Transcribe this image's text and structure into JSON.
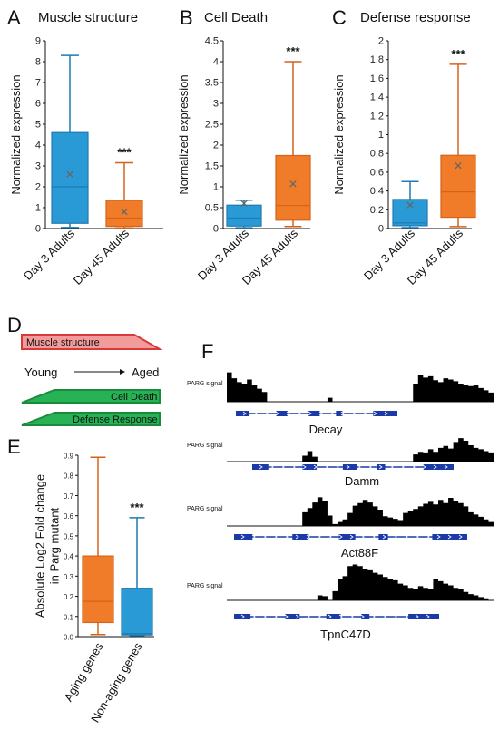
{
  "colors": {
    "blue": "#2a9ad6",
    "blue_dark": "#1f7bb0",
    "orange": "#f07c2a",
    "orange_dark": "#d4621a",
    "mean_mark": "#666666",
    "muscle_fill": "#f29b9b",
    "muscle_stroke": "#d83a3a",
    "green_fill": "#27b255",
    "green_stroke": "#1a8a3c",
    "track_fill": "#000000",
    "gene_blue": "#1a3aa8"
  },
  "chart_data": [
    {
      "panel": "A",
      "type": "box",
      "title": "Muscle structure",
      "ylabel": "Normalized expression",
      "ylim": [
        0,
        9
      ],
      "yticks": [
        "0",
        "1",
        "2",
        "3",
        "4",
        "5",
        "6",
        "7",
        "8",
        "9"
      ],
      "categories": [
        "Day 3 Adults",
        "Day 45 Adults"
      ],
      "boxes": [
        {
          "color": "blue",
          "min": 0.05,
          "q1": 0.25,
          "median": 2.0,
          "q3": 4.6,
          "max": 8.3,
          "mean": 2.6
        },
        {
          "color": "orange",
          "min": 0.02,
          "q1": 0.1,
          "median": 0.5,
          "q3": 1.35,
          "max": 3.15,
          "mean": 0.8
        }
      ],
      "significance": "***"
    },
    {
      "panel": "B",
      "type": "box",
      "title": "Cell Death",
      "ylabel": "Normalized expression",
      "ylim": [
        0,
        4.5
      ],
      "yticks": [
        "0",
        "0.5",
        "1",
        "1.5",
        "2",
        "2.5",
        "3",
        "3.5",
        "4",
        "4.5"
      ],
      "categories": [
        "Day 3 Adults",
        "Day 45 Adults"
      ],
      "boxes": [
        {
          "color": "blue",
          "min": 0.02,
          "q1": 0.06,
          "median": 0.25,
          "q3": 0.56,
          "max": 0.68,
          "mean": 0.6
        },
        {
          "color": "orange",
          "min": 0.05,
          "q1": 0.2,
          "median": 0.55,
          "q3": 1.75,
          "max": 4.0,
          "mean": 1.07
        }
      ],
      "significance": "***"
    },
    {
      "panel": "C",
      "type": "box",
      "title": "Defense response",
      "ylabel": "Normalized expression",
      "ylim": [
        0,
        2
      ],
      "yticks": [
        "0",
        "0.2",
        "0.4",
        "0.6",
        "0.8",
        "1",
        "1.2",
        "1.4",
        "1.6",
        "1.8",
        "2"
      ],
      "categories": [
        "Day 3 Adults",
        "Day 45 Adults"
      ],
      "boxes": [
        {
          "color": "blue",
          "min": 0.01,
          "q1": 0.03,
          "median": 0.06,
          "q3": 0.31,
          "max": 0.5,
          "mean": 0.25
        },
        {
          "color": "orange",
          "min": 0.02,
          "q1": 0.12,
          "median": 0.39,
          "q3": 0.78,
          "max": 1.75,
          "mean": 0.67
        }
      ],
      "significance": "***"
    },
    {
      "panel": "E",
      "type": "box",
      "title": "",
      "ylabel": "Absolute Log2 Fold change in Parg mutant",
      "ylim": [
        0,
        0.9
      ],
      "yticks": [
        "0.0",
        "0.1",
        "0.2",
        "0.3",
        "0.4",
        "0.5",
        "0.6",
        "0.7",
        "0.8",
        "0.9"
      ],
      "categories": [
        "Aging genes",
        "Non-aging genes"
      ],
      "boxes": [
        {
          "color": "orange",
          "min": 0.01,
          "q1": 0.07,
          "median": 0.175,
          "q3": 0.4,
          "max": 0.89,
          "mean": null
        },
        {
          "color": "blue",
          "min": 0.005,
          "q1": 0.008,
          "median": 0.015,
          "q3": 0.24,
          "max": 0.59,
          "mean": null
        }
      ],
      "significance": "***"
    },
    {
      "panel": "F",
      "type": "area",
      "track_label": "PARG signal",
      "genes": [
        "Decay",
        "Damm",
        "Act88F",
        "TpnC47D"
      ],
      "tracks": [
        {
          "gene": "Decay",
          "values": [
            0.9,
            0.72,
            0.6,
            0.55,
            0.68,
            0.5,
            0.4,
            0.3,
            0,
            0,
            0,
            0,
            0,
            0,
            0,
            0,
            0,
            0,
            0,
            0,
            0.12,
            0,
            0,
            0,
            0,
            0,
            0,
            0,
            0,
            0,
            0,
            0,
            0,
            0,
            0,
            0,
            0,
            0.55,
            0.82,
            0.74,
            0.78,
            0.66,
            0.6,
            0.72,
            0.68,
            0.63,
            0.55,
            0.5,
            0.48,
            0.5,
            0.42,
            0.35,
            0.28
          ]
        },
        {
          "gene": "Damm",
          "values": [
            0,
            0,
            0,
            0,
            0,
            0,
            0,
            0,
            0,
            0,
            0,
            0,
            0,
            0,
            0,
            0.18,
            0.32,
            0.15,
            0,
            0,
            0,
            0,
            0,
            0,
            0,
            0,
            0,
            0,
            0,
            0,
            0,
            0,
            0,
            0,
            0,
            0,
            0,
            0.22,
            0.3,
            0.28,
            0.38,
            0.3,
            0.42,
            0.48,
            0.4,
            0.6,
            0.72,
            0.64,
            0.5,
            0.42,
            0.38,
            0.32,
            0.28
          ]
        },
        {
          "gene": "Act88F",
          "values": [
            0,
            0,
            0,
            0,
            0,
            0,
            0,
            0,
            0,
            0,
            0,
            0,
            0,
            0,
            0,
            0.42,
            0.55,
            0.72,
            0.88,
            0.76,
            0.32,
            0.06,
            0.12,
            0.2,
            0.4,
            0.62,
            0.7,
            0.8,
            0.72,
            0.6,
            0.5,
            0.3,
            0.26,
            0.22,
            0.18,
            0.4,
            0.46,
            0.52,
            0.6,
            0.68,
            0.74,
            0.66,
            0.8,
            0.7,
            0.86,
            0.75,
            0.7,
            0.6,
            0.42,
            0.35,
            0.28,
            0.2,
            0.12
          ]
        },
        {
          "gene": "TpnC47D",
          "values": [
            0,
            0,
            0,
            0,
            0,
            0,
            0,
            0,
            0,
            0,
            0,
            0,
            0,
            0,
            0,
            0,
            0,
            0,
            0.12,
            0.1,
            0,
            0.22,
            0.5,
            0.58,
            0.82,
            0.86,
            0.82,
            0.76,
            0.72,
            0.66,
            0.62,
            0.56,
            0.52,
            0.48,
            0.4,
            0.36,
            0.3,
            0.28,
            0.34,
            0.3,
            0.26,
            0.52,
            0.46,
            0.4,
            0.36,
            0.3,
            0.26,
            0.2,
            0.15,
            0.12,
            0.08,
            0.05,
            0
          ]
        }
      ]
    }
  ],
  "panel_labels": [
    "A",
    "B",
    "C",
    "D",
    "E",
    "F"
  ],
  "panelD": {
    "muscle": "Muscle structure",
    "young": "Young",
    "aged": "Aged",
    "cell_death": "Cell Death",
    "defense": "Defense Response"
  }
}
